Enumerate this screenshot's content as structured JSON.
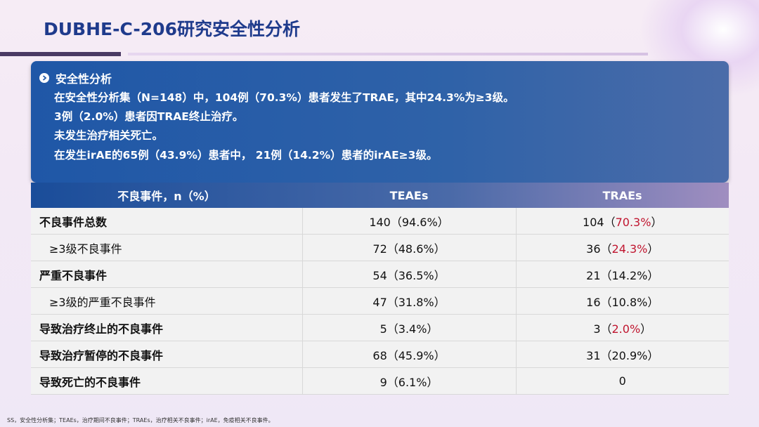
{
  "title": "DUBHE-C-206研究安全性分析",
  "summary": {
    "heading": "安全性分析",
    "lines": [
      "在安全性分析集（N=148）中，104例（70.3%）患者发生了TRAE，其中24.3%为≥3级。",
      "3例（2.0%）患者因TRAE终止治疗。",
      "未发生治疗相关死亡。",
      "在发生irAE的65例（43.9%）患者中， 21例（14.2%）患者的irAE≥3级。"
    ]
  },
  "table": {
    "headers": [
      "不良事件，n（%）",
      "TEAEs",
      "TRAEs"
    ],
    "rows": [
      {
        "label": "不良事件总数",
        "teae": "140（94.6%）",
        "trae_pre": "104（",
        "trae_hl": "70.3%",
        "trae_post": "）"
      },
      {
        "label": "≥3级不良事件",
        "teae": "72（48.6%）",
        "trae_pre": "36（",
        "trae_hl": "24.3%",
        "trae_post": "）"
      },
      {
        "label": "严重不良事件",
        "teae": "54（36.5%）",
        "trae_pre": "21（14.2%）",
        "trae_hl": "",
        "trae_post": ""
      },
      {
        "label": "≥3级的严重不良事件",
        "teae": "47（31.8%）",
        "trae_pre": "16（10.8%）",
        "trae_hl": "",
        "trae_post": ""
      },
      {
        "label": "导致治疗终止的不良事件",
        "teae": "5（3.4%）",
        "trae_pre": "3（",
        "trae_hl": "2.0%",
        "trae_post": "）"
      },
      {
        "label": "导致治疗暂停的不良事件",
        "teae": "68（45.9%）",
        "trae_pre": "31（20.9%）",
        "trae_hl": "",
        "trae_post": ""
      },
      {
        "label": "导致死亡的不良事件",
        "teae": "9（6.1%）",
        "trae_pre": "0",
        "trae_hl": "",
        "trae_post": ""
      }
    ]
  },
  "footnote": "SS，安全性分析集；TEAEs，治疗期间不良事件；TRAEs，治疗相关不良事件；irAE，免疫相关不良事件。",
  "colors": {
    "accent": "#1f3b8c",
    "highlight": "#c0152f",
    "header_blue": "#1a4d9a"
  },
  "icons": [
    "circle-chevron-right-icon"
  ]
}
